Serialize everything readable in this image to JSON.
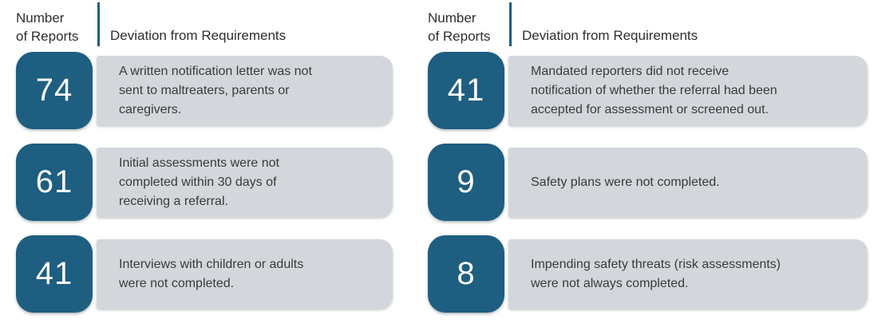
{
  "colors": {
    "accent_teal": "#1E5E80",
    "bar_gray": "#D3D7DB",
    "header_text": "#2E2E2E",
    "body_text": "#3A3A3A",
    "count_text": "#FFFFFF"
  },
  "columns": [
    {
      "header": {
        "number_label": "Number\nof Reports",
        "deviation_label": "Deviation from Requirements"
      },
      "rows": [
        {
          "count": "74",
          "description": "A written notification letter was not\nsent to maltreaters, parents or\ncaregivers."
        },
        {
          "count": "61",
          "description": "Initial assessments were not\ncompleted within 30 days of\nreceiving a referral."
        },
        {
          "count": "41",
          "description": "Interviews with children or adults\nwere not completed."
        }
      ]
    },
    {
      "header": {
        "number_label": "Number\nof Reports",
        "deviation_label": "Deviation from Requirements"
      },
      "rows": [
        {
          "count": "41",
          "description": "Mandated reporters did not receive\nnotification of whether the referral had been\naccepted for assessment or screened out."
        },
        {
          "count": "9",
          "description": "Safety plans were not completed."
        },
        {
          "count": "8",
          "description": "Impending safety threats (risk assessments)\nwere not always completed."
        }
      ]
    }
  ]
}
